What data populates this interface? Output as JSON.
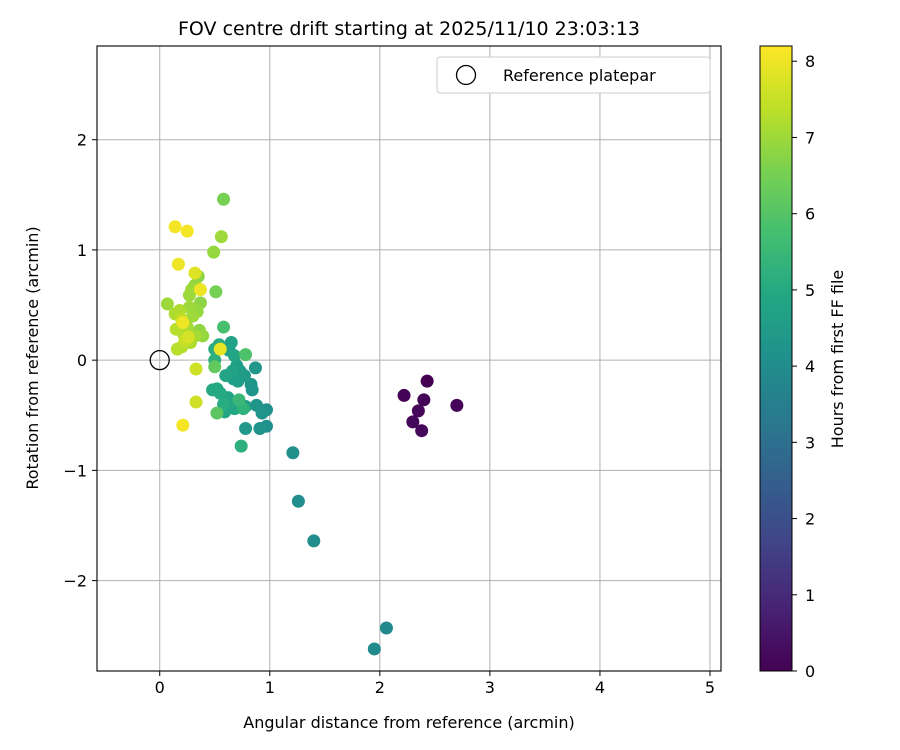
{
  "chart_data": {
    "type": "scatter",
    "title": "FOV centre drift starting at 2025/11/10 23:03:13",
    "xlabel": "Angular distance from reference (arcmin)",
    "ylabel": "Rotation from reference (arcmin)",
    "xlim": [
      -0.57,
      5.1
    ],
    "ylim": [
      -2.82,
      2.85
    ],
    "xticks": [
      0,
      1,
      2,
      3,
      4,
      5
    ],
    "yticks": [
      -2,
      -1,
      0,
      1,
      2
    ],
    "grid": true,
    "legend": {
      "label": "Reference platepar",
      "location": "upper-right"
    },
    "reference_point": {
      "x": 0,
      "y": 0
    },
    "colorbar": {
      "label": "Hours from first FF file",
      "min": 0,
      "max": 8.2,
      "ticks": [
        0,
        1,
        2,
        3,
        4,
        5,
        6,
        7,
        8
      ],
      "colormap": "viridis"
    },
    "points": [
      {
        "x": 2.43,
        "y": -0.19,
        "h": 0.0
      },
      {
        "x": 2.22,
        "y": -0.32,
        "h": 0.05
      },
      {
        "x": 2.4,
        "y": -0.36,
        "h": 0.08
      },
      {
        "x": 2.7,
        "y": -0.41,
        "h": 0.1
      },
      {
        "x": 2.35,
        "y": -0.46,
        "h": 0.12
      },
      {
        "x": 2.3,
        "y": -0.56,
        "h": 0.15
      },
      {
        "x": 2.38,
        "y": -0.64,
        "h": 0.2
      },
      {
        "x": 1.95,
        "y": -2.62,
        "h": 3.9
      },
      {
        "x": 2.06,
        "y": -2.43,
        "h": 3.9
      },
      {
        "x": 1.4,
        "y": -1.64,
        "h": 4.0
      },
      {
        "x": 1.26,
        "y": -1.28,
        "h": 4.0
      },
      {
        "x": 1.21,
        "y": -0.84,
        "h": 4.1
      },
      {
        "x": 0.97,
        "y": -0.45,
        "h": 4.1
      },
      {
        "x": 0.97,
        "y": -0.6,
        "h": 4.1
      },
      {
        "x": 0.91,
        "y": -0.62,
        "h": 4.2
      },
      {
        "x": 0.93,
        "y": -0.48,
        "h": 4.2
      },
      {
        "x": 0.88,
        "y": -0.41,
        "h": 4.3
      },
      {
        "x": 0.84,
        "y": -0.27,
        "h": 4.3
      },
      {
        "x": 0.83,
        "y": -0.22,
        "h": 4.3
      },
      {
        "x": 0.87,
        "y": -0.07,
        "h": 4.4
      },
      {
        "x": 0.78,
        "y": -0.62,
        "h": 4.4
      },
      {
        "x": 0.78,
        "y": -0.42,
        "h": 4.5
      },
      {
        "x": 0.77,
        "y": -0.14,
        "h": 4.5
      },
      {
        "x": 0.73,
        "y": -0.1,
        "h": 4.5
      },
      {
        "x": 0.71,
        "y": -0.19,
        "h": 4.6
      },
      {
        "x": 0.7,
        "y": -0.05,
        "h": 4.6
      },
      {
        "x": 0.67,
        "y": -0.17,
        "h": 4.6
      },
      {
        "x": 0.66,
        "y": -0.1,
        "h": 4.7
      },
      {
        "x": 0.65,
        "y": 0.16,
        "h": 4.7
      },
      {
        "x": 0.63,
        "y": 0.09,
        "h": 4.7
      },
      {
        "x": 0.68,
        "y": 0.04,
        "h": 4.8
      },
      {
        "x": 0.6,
        "y": -0.14,
        "h": 4.8
      },
      {
        "x": 0.62,
        "y": -0.34,
        "h": 4.8
      },
      {
        "x": 0.68,
        "y": -0.44,
        "h": 4.9
      },
      {
        "x": 0.64,
        "y": -0.41,
        "h": 4.9
      },
      {
        "x": 0.59,
        "y": -0.47,
        "h": 4.9
      },
      {
        "x": 0.55,
        "y": -0.3,
        "h": 5.0
      },
      {
        "x": 0.52,
        "y": -0.26,
        "h": 5.0
      },
      {
        "x": 0.48,
        "y": -0.27,
        "h": 5.0
      },
      {
        "x": 0.58,
        "y": -0.4,
        "h": 5.1
      },
      {
        "x": 0.54,
        "y": 0.14,
        "h": 5.1
      },
      {
        "x": 0.5,
        "y": 0.1,
        "h": 5.1
      },
      {
        "x": 0.5,
        "y": 0.0,
        "h": 5.2
      },
      {
        "x": 0.74,
        "y": -0.78,
        "h": 5.2
      },
      {
        "x": 0.76,
        "y": -0.44,
        "h": 5.3
      },
      {
        "x": 0.72,
        "y": -0.36,
        "h": 5.5
      },
      {
        "x": 0.58,
        "y": 0.3,
        "h": 5.8
      },
      {
        "x": 0.78,
        "y": 0.05,
        "h": 5.9
      },
      {
        "x": 0.52,
        "y": -0.48,
        "h": 6.1
      },
      {
        "x": 0.5,
        "y": -0.06,
        "h": 6.2
      },
      {
        "x": 0.58,
        "y": 1.46,
        "h": 6.5
      },
      {
        "x": 0.51,
        "y": 0.62,
        "h": 6.5
      },
      {
        "x": 0.49,
        "y": 0.98,
        "h": 6.9
      },
      {
        "x": 0.56,
        "y": 1.12,
        "h": 7.0
      },
      {
        "x": 0.37,
        "y": 0.52,
        "h": 6.8
      },
      {
        "x": 0.35,
        "y": 0.76,
        "h": 6.8
      },
      {
        "x": 0.32,
        "y": 0.68,
        "h": 6.9
      },
      {
        "x": 0.29,
        "y": 0.64,
        "h": 7.0
      },
      {
        "x": 0.27,
        "y": 0.59,
        "h": 7.0
      },
      {
        "x": 0.36,
        "y": 0.27,
        "h": 6.8
      },
      {
        "x": 0.39,
        "y": 0.22,
        "h": 6.9
      },
      {
        "x": 0.34,
        "y": 0.44,
        "h": 6.9
      },
      {
        "x": 0.3,
        "y": 0.4,
        "h": 7.0
      },
      {
        "x": 0.27,
        "y": 0.48,
        "h": 7.0
      },
      {
        "x": 0.25,
        "y": 0.3,
        "h": 7.1
      },
      {
        "x": 0.32,
        "y": 0.22,
        "h": 7.1
      },
      {
        "x": 0.28,
        "y": 0.16,
        "h": 7.2
      },
      {
        "x": 0.22,
        "y": 0.23,
        "h": 7.2
      },
      {
        "x": 0.2,
        "y": 0.12,
        "h": 7.3
      },
      {
        "x": 0.16,
        "y": 0.1,
        "h": 7.3
      },
      {
        "x": 0.15,
        "y": 0.28,
        "h": 7.3
      },
      {
        "x": 0.18,
        "y": 0.45,
        "h": 7.2
      },
      {
        "x": 0.14,
        "y": 0.42,
        "h": 7.2
      },
      {
        "x": 0.07,
        "y": 0.51,
        "h": 7.0
      },
      {
        "x": 0.2,
        "y": 0.37,
        "h": 7.4
      },
      {
        "x": 0.23,
        "y": 0.18,
        "h": 7.5
      },
      {
        "x": 0.33,
        "y": -0.08,
        "h": 7.6
      },
      {
        "x": 0.33,
        "y": -0.38,
        "h": 7.6
      },
      {
        "x": 0.55,
        "y": 0.1,
        "h": 7.9
      },
      {
        "x": 0.26,
        "y": 0.21,
        "h": 7.7
      },
      {
        "x": 0.21,
        "y": 0.34,
        "h": 8.0
      },
      {
        "x": 0.37,
        "y": 0.64,
        "h": 8.0
      },
      {
        "x": 0.32,
        "y": 0.79,
        "h": 7.8
      },
      {
        "x": 0.17,
        "y": 0.87,
        "h": 8.0
      },
      {
        "x": 0.14,
        "y": 1.21,
        "h": 8.1
      },
      {
        "x": 0.25,
        "y": 1.17,
        "h": 8.1
      },
      {
        "x": 0.21,
        "y": -0.59,
        "h": 8.1
      }
    ]
  }
}
